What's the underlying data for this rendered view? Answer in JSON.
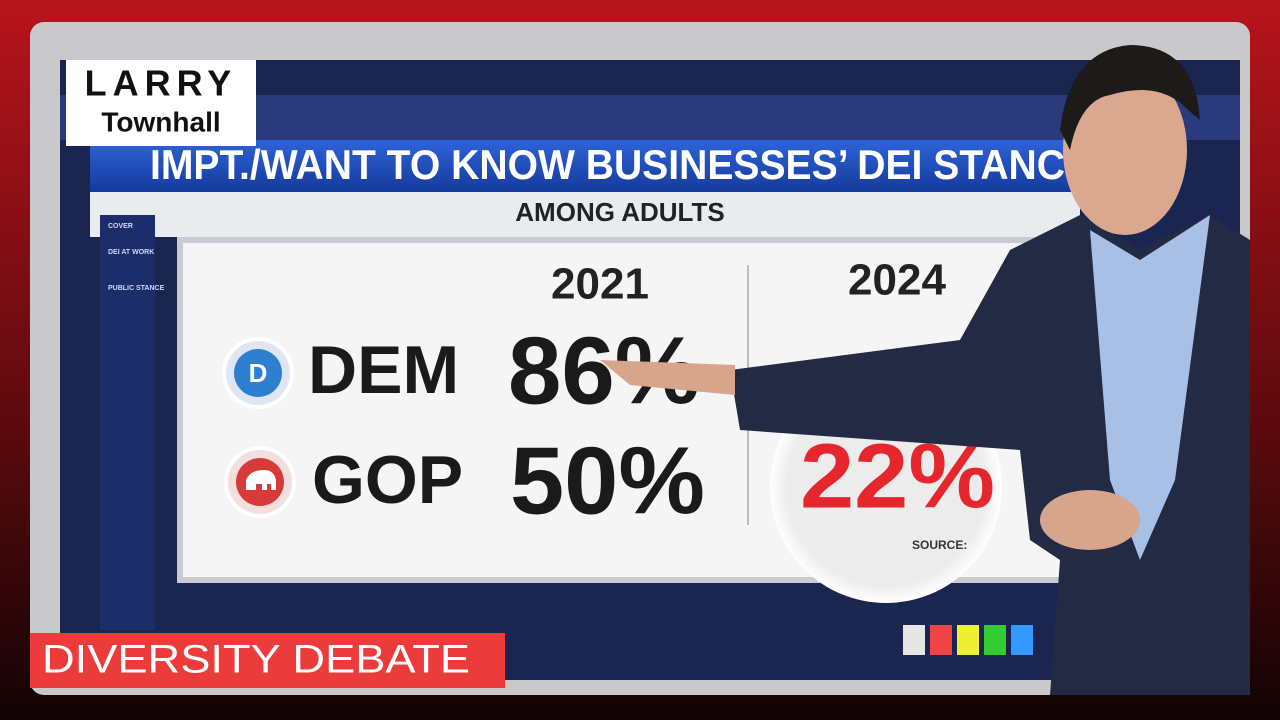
{
  "logo": {
    "top": "LARRY",
    "bottom": "Townhall"
  },
  "screen": {
    "title": "IMPT./WANT TO KNOW BUSINESSES’ DEI STANC",
    "subtitle": "AMONG ADULTS",
    "nav": [
      "COVER",
      "DEI AT WORK",
      "PUBLIC STANCE"
    ],
    "table": {
      "columns": [
        "2021",
        "2024"
      ],
      "rows": [
        {
          "party": "DEM",
          "logo": "D",
          "y2021": "86%"
        },
        {
          "party": "GOP",
          "y2021": "50%",
          "y2024": "22%"
        }
      ]
    },
    "source": "SOURCE:"
  },
  "banner": "DIVERSITY DEBATE"
}
